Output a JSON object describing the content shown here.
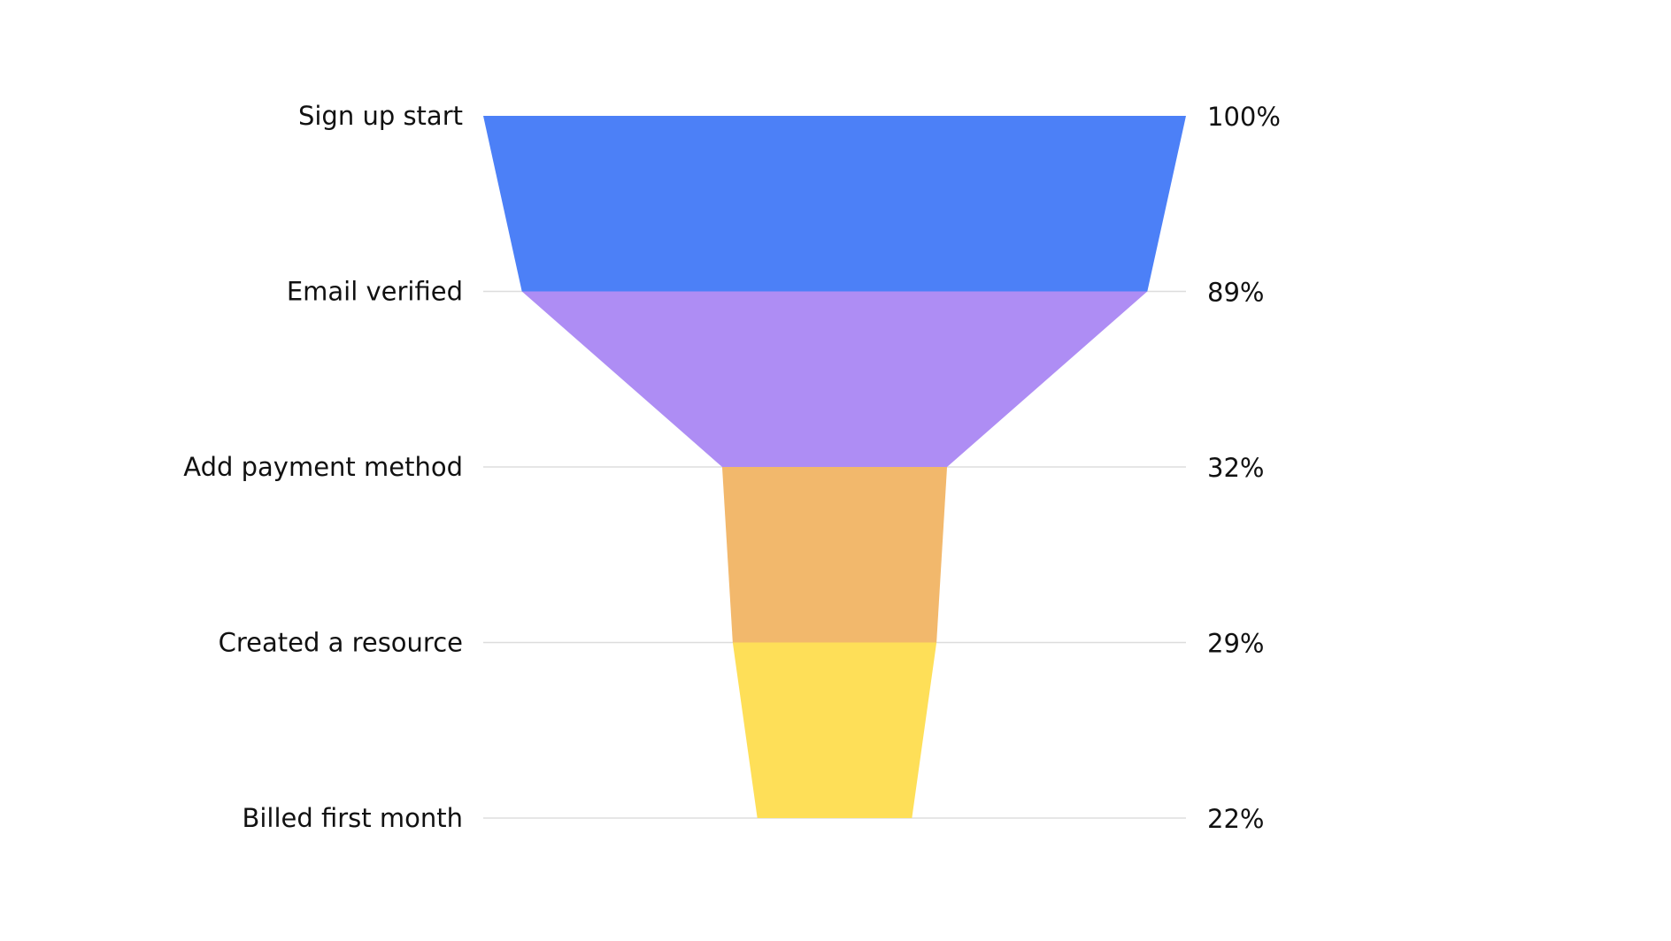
{
  "chart_data": {
    "type": "funnel",
    "categories": [
      "Sign up start",
      "Email verified",
      "Add payment method",
      "Created a resource",
      "Billed first month"
    ],
    "values": [
      100,
      89,
      32,
      29,
      22
    ],
    "value_labels": [
      "100%",
      "89%",
      "32%",
      "29%",
      "22%"
    ],
    "unit": "%",
    "colors": [
      "#4c80f7",
      "#ae8df4",
      "#f2b86c",
      "#fedf58"
    ],
    "grid": true,
    "gridline_color": "#dddddd"
  }
}
